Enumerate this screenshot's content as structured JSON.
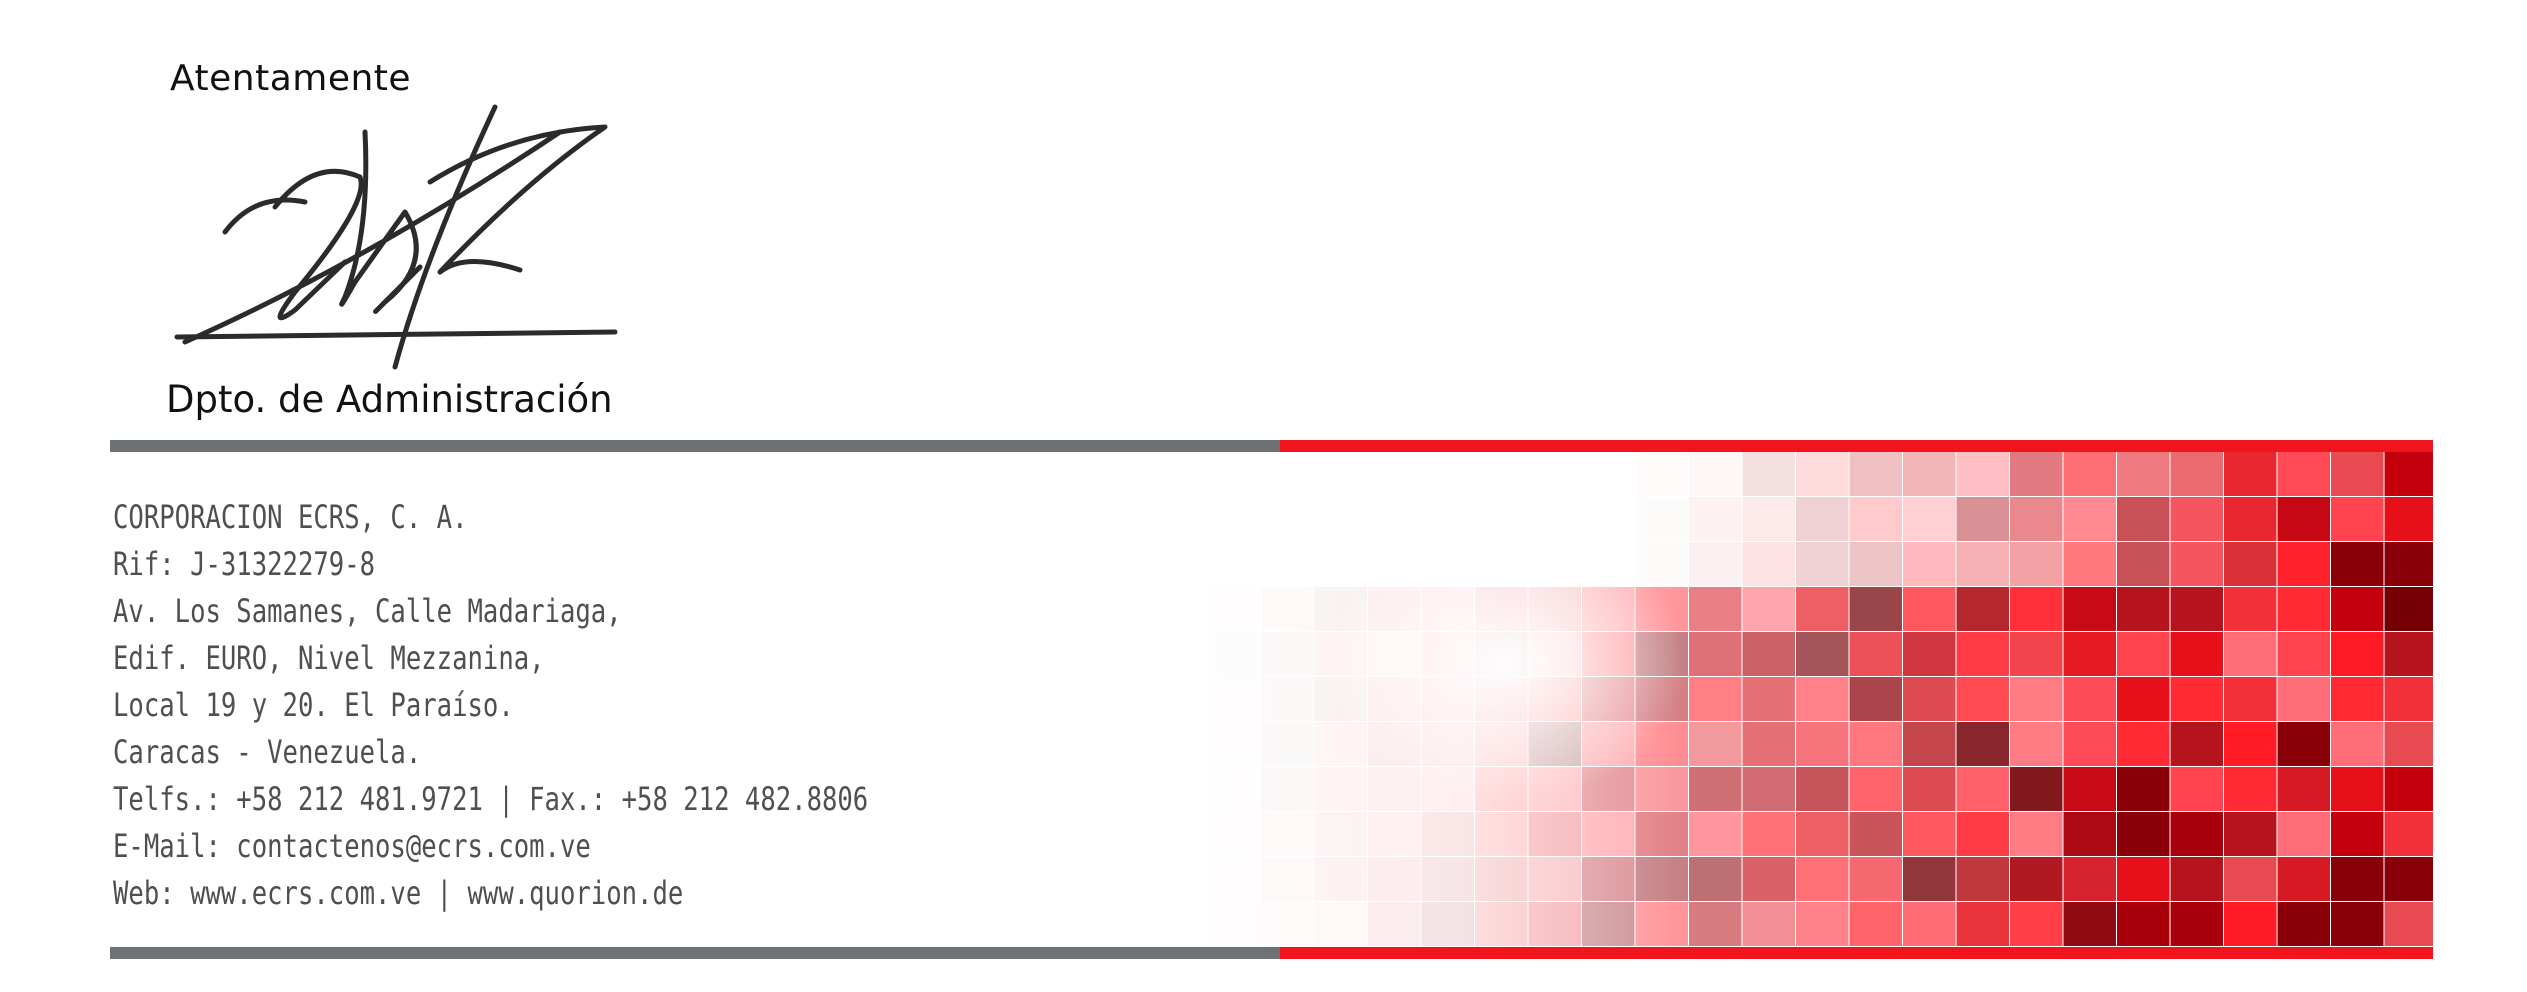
{
  "letter": {
    "closing": "Atentamente",
    "department": "Dpto. de Administración"
  },
  "footer": {
    "company": "CORPORACION ECRS, C. A.",
    "rif": "Rif: J-31322279-8",
    "address_line1": "Av. Los Samanes, Calle Madariaga,",
    "address_line2": "Edif. EURO, Nivel Mezzanina,",
    "address_line3": "Local 19 y 20. El Paraíso.",
    "city": "Caracas - Venezuela.",
    "phones": "Telfs.: +58 212 481.9721 | Fax.: +58 212 482.8806",
    "email": "E-Mail: contactenos@ecrs.com.ve",
    "web": "Web: www.ecrs.com.ve | www.quorion.de"
  },
  "colors": {
    "gray_bar": "#6f7274",
    "red_bar": "#f0141c",
    "text": "#4e4f51"
  }
}
